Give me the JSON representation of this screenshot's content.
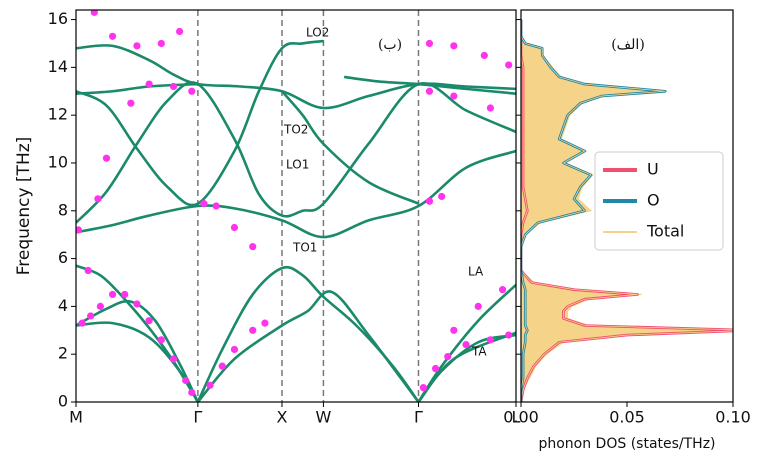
{
  "chart_data": [
    {
      "type": "line",
      "ylabel": "Frequency [THz]",
      "xticks": [
        {
          "value": 0,
          "label": "M"
        },
        {
          "value": 1,
          "label": "Γ"
        },
        {
          "value": 1.69,
          "label": "X"
        },
        {
          "value": 2.03,
          "label": "W"
        },
        {
          "value": 2.81,
          "label": "Γ"
        },
        {
          "value": 3.61,
          "label": "L"
        }
      ],
      "xlim": [
        0,
        3.61
      ],
      "ylim": [
        0,
        16.4
      ],
      "yticks": [
        0,
        2,
        4,
        6,
        8,
        10,
        12,
        14,
        16
      ],
      "annotations": [
        "LO2",
        "TO2",
        "LO1",
        "TO1",
        "LA",
        "TA",
        "(ب)",
        "(الف)"
      ],
      "series": [
        {
          "color": "#1b8a6b",
          "x": [
            0,
            0.2,
            0.4,
            0.6,
            0.8,
            1
          ],
          "values": [
            5.7,
            5.3,
            4.3,
            3.1,
            1.7,
            0
          ]
        },
        {
          "color": "#1b8a6b",
          "x": [
            0,
            0.25,
            0.45,
            0.65,
            0.85,
            1
          ],
          "values": [
            3.2,
            3.9,
            4.2,
            3.4,
            1.6,
            0
          ]
        },
        {
          "color": "#1b8a6b",
          "x": [
            0,
            0.3,
            0.6,
            0.85,
            1
          ],
          "values": [
            3.2,
            3.3,
            2.7,
            1.3,
            0
          ]
        },
        {
          "color": "#1b8a6b",
          "x": [
            1,
            1.2,
            1.45,
            1.69,
            1.86,
            2.03,
            2.3,
            2.6,
            2.81
          ],
          "values": [
            0,
            2.2,
            4.5,
            5.6,
            5.3,
            4.4,
            3.2,
            1.5,
            0
          ]
        },
        {
          "color": "#1b8a6b",
          "x": [
            1,
            1.3,
            1.69,
            1.9,
            2.1,
            2.4,
            2.81
          ],
          "values": [
            0,
            1.8,
            3.2,
            3.8,
            4.6,
            2.8,
            0
          ]
        },
        {
          "color": "#1b8a6b",
          "x": [
            2.81,
            3.0,
            3.3,
            3.61
          ],
          "values": [
            0,
            1.3,
            2.5,
            2.8
          ]
        },
        {
          "color": "#1b8a6b",
          "x": [
            2.81,
            3.0,
            3.3,
            3.61
          ],
          "values": [
            0,
            1.5,
            3.4,
            4.9
          ]
        },
        {
          "color": "#1b8a6b",
          "x": [
            2.81,
            3.1,
            3.61
          ],
          "values": [
            0,
            1.8,
            2.9
          ]
        },
        {
          "color": "#1b8a6b",
          "x": [
            0,
            0.3,
            0.6,
            1,
            1.3,
            1.69,
            2.03,
            2.4,
            2.81,
            3.2,
            3.61
          ],
          "values": [
            7.1,
            7.4,
            7.8,
            8.2,
            8.1,
            7.6,
            6.9,
            7.6,
            8.2,
            9.8,
            10.5
          ]
        },
        {
          "color": "#1b8a6b",
          "x": [
            0,
            0.25,
            0.5,
            0.75,
            1,
            1.3,
            1.5,
            1.69,
            1.86,
            2.03,
            2.4,
            2.81,
            3.2,
            3.61
          ],
          "values": [
            7.5,
            8.8,
            10.8,
            12.6,
            13.3,
            11.0,
            8.7,
            7.8,
            8.0,
            8.3,
            10.8,
            13.3,
            12.2,
            11.3
          ]
        },
        {
          "color": "#1b8a6b",
          "x": [
            0,
            0.25,
            0.5,
            0.75,
            1,
            1.3,
            1.5,
            1.69,
            1.86,
            2.03,
            2.1,
            2.2,
            2.5,
            2.81,
            3.2,
            3.61
          ],
          "values": [
            13.0,
            12.4,
            10.6,
            9.0,
            8.3,
            10.5,
            13.0,
            14.8,
            15.0,
            15.1,
            null,
            13.6,
            13.4,
            13.3,
            13.1,
            12.9
          ]
        },
        {
          "color": "#1b8a6b",
          "x": [
            0,
            0.3,
            0.6,
            0.8,
            1,
            1.35,
            1.69,
            2.03,
            2.4,
            2.81,
            3.2,
            3.61
          ],
          "values": [
            14.8,
            14.9,
            14.3,
            13.7,
            13.3,
            13.2,
            13.0,
            12.3,
            12.8,
            13.3,
            13.2,
            13.1
          ]
        },
        {
          "color": "#1b8a6b",
          "x": [
            0,
            0.3,
            0.6,
            1
          ],
          "values": [
            12.9,
            13.0,
            13.2,
            13.3
          ]
        },
        {
          "color": "#1b8a6b",
          "x": [
            1.69,
            1.86,
            2.03,
            2.4,
            2.81
          ],
          "values": [
            13.0,
            12.0,
            10.8,
            9.2,
            8.3
          ]
        }
      ],
      "points": {
        "color": "#ff33ee",
        "x": [
          0.05,
          0.12,
          0.2,
          0.3,
          0.4,
          0.5,
          0.6,
          0.7,
          0.8,
          0.9,
          0.95,
          0.02,
          0.1,
          0.18,
          0.25,
          0.45,
          0.6,
          0.8,
          0.95,
          0.15,
          0.3,
          0.5,
          0.7,
          0.85,
          1.05,
          1.15,
          1.3,
          1.45,
          1.1,
          1.2,
          1.3,
          1.45,
          1.55,
          2.85,
          2.95,
          3.05,
          3.2,
          3.4,
          3.55,
          3.1,
          3.3,
          3.5,
          2.9,
          3.0,
          2.9,
          3.1,
          3.35,
          3.55,
          2.9,
          3.1,
          3.4
        ],
        "values": [
          3.3,
          3.6,
          4.0,
          4.5,
          4.5,
          4.1,
          3.4,
          2.6,
          1.8,
          0.9,
          0.4,
          7.2,
          5.5,
          8.5,
          10.2,
          12.5,
          13.3,
          13.2,
          13.0,
          16.3,
          15.3,
          14.9,
          15.0,
          15.5,
          8.3,
          8.2,
          7.3,
          6.5,
          0.7,
          1.5,
          2.2,
          3.0,
          3.3,
          0.6,
          1.4,
          1.9,
          2.4,
          2.6,
          2.8,
          3.0,
          4.0,
          4.7,
          8.4,
          8.6,
          15.0,
          14.9,
          14.5,
          14.1,
          13.0,
          12.8,
          12.3
        ]
      }
    },
    {
      "type": "area",
      "xlabel": "phonon DOS (states/THz)",
      "xlim": [
        0,
        0.1
      ],
      "xticks": [
        {
          "value": 0,
          "label": "0.00"
        },
        0.05,
        {
          "value": 0.1,
          "label": "0.10"
        }
      ],
      "ylim": [
        0,
        16.4
      ],
      "yticks": [
        0,
        2,
        4,
        6,
        8,
        10,
        12,
        14,
        16
      ],
      "legend": "center right",
      "y": [
        0,
        0.5,
        1,
        1.5,
        2,
        2.5,
        2.8,
        3.0,
        3.2,
        3.5,
        3.8,
        4.0,
        4.3,
        4.5,
        4.7,
        5.0,
        5.5,
        6,
        6.5,
        7,
        7.5,
        8,
        8.5,
        9,
        9.5,
        10,
        10.5,
        11,
        11.5,
        12,
        12.5,
        12.8,
        13.0,
        13.3,
        13.6,
        14,
        14.5,
        14.8,
        15,
        15.3,
        16
      ],
      "series": [
        {
          "name": "Total",
          "color": "#f5d48a",
          "values": [
            0,
            0.001,
            0.004,
            0.007,
            0.012,
            0.02,
            0.052,
            0.111,
            0.032,
            0.022,
            0.022,
            0.024,
            0.032,
            0.057,
            0.027,
            0.006,
            0,
            0,
            0,
            0.002,
            0.009,
            0.033,
            0.027,
            0.029,
            0.034,
            0.021,
            0.031,
            0.019,
            0.021,
            0.023,
            0.029,
            0.039,
            0.069,
            0.031,
            0.019,
            0.015,
            0.01,
            0.01,
            0.002,
            0,
            0
          ]
        },
        {
          "name": "U",
          "color": "#f0506e",
          "values": [
            0,
            0.001,
            0.003,
            0.006,
            0.011,
            0.018,
            0.05,
            0.108,
            0.03,
            0.02,
            0.02,
            0.022,
            0.03,
            0.055,
            0.025,
            0.005,
            0,
            0,
            0,
            0,
            0.001,
            0.003,
            0.002,
            0.001,
            0.001,
            0.001,
            0.001,
            0.001,
            0.001,
            0.001,
            0.001,
            0.001,
            0.001,
            0.001,
            0.001,
            0.001,
            0,
            0,
            0,
            0,
            0
          ]
        },
        {
          "name": "O",
          "color": "#1f88a8",
          "values": [
            0,
            0,
            0.001,
            0.001,
            0.001,
            0.002,
            0.002,
            0.003,
            0.002,
            0.002,
            0.002,
            0.002,
            0.002,
            0.002,
            0.002,
            0.001,
            0,
            0,
            0,
            0.002,
            0.008,
            0.03,
            0.025,
            0.028,
            0.033,
            0.02,
            0.03,
            0.018,
            0.02,
            0.022,
            0.028,
            0.038,
            0.068,
            0.03,
            0.018,
            0.014,
            0.01,
            0.01,
            0.002,
            0,
            0
          ]
        }
      ]
    }
  ]
}
